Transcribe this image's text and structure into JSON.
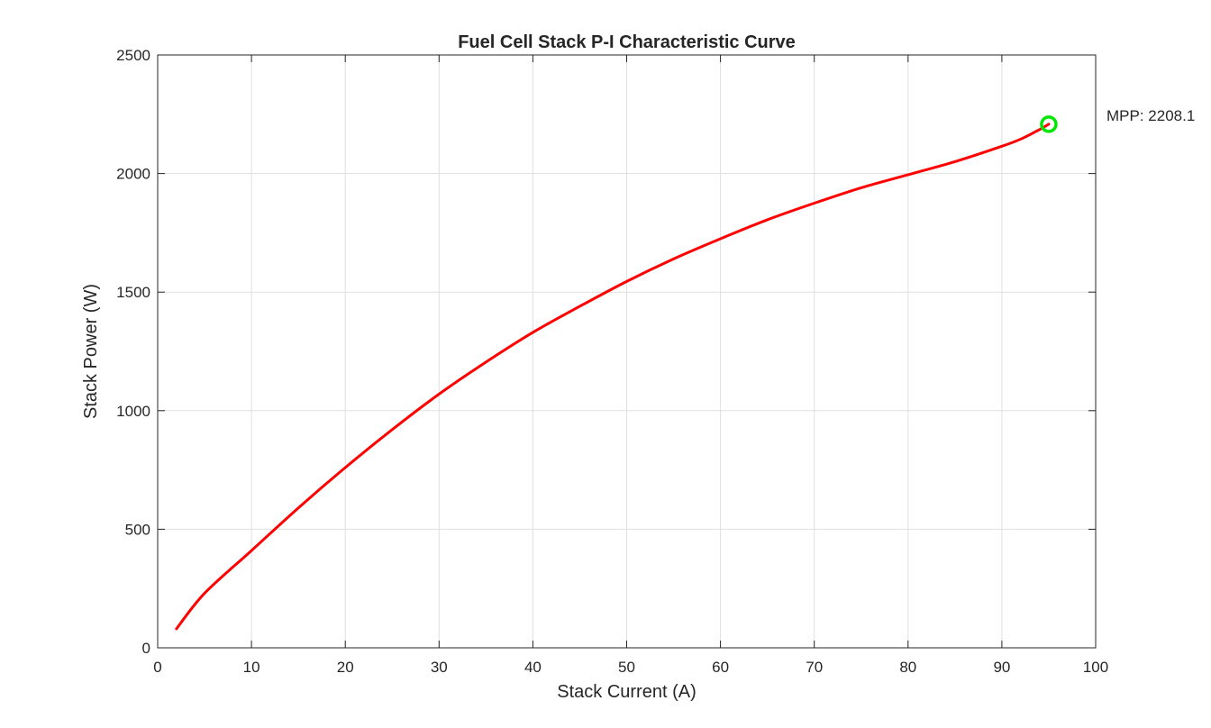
{
  "chart_data": {
    "type": "line",
    "title": "Fuel Cell Stack P-I Characteristic Curve",
    "xlabel": "Stack Current (A)",
    "ylabel": "Stack Power (W)",
    "xlim": [
      0,
      100
    ],
    "ylim": [
      0,
      2500
    ],
    "xticks": [
      0,
      10,
      20,
      30,
      40,
      50,
      60,
      70,
      80,
      90,
      100
    ],
    "yticks": [
      0,
      500,
      1000,
      1500,
      2000,
      2500
    ],
    "grid": true,
    "series": [
      {
        "color": "#ff0000",
        "x": [
          2,
          5,
          10,
          15,
          20,
          25,
          30,
          35,
          40,
          45,
          50,
          55,
          60,
          65,
          70,
          75,
          80,
          85,
          90,
          92,
          94,
          95
        ],
        "y": [
          80,
          230,
          410,
          590,
          760,
          920,
          1070,
          1205,
          1330,
          1440,
          1545,
          1640,
          1725,
          1805,
          1875,
          1940,
          1995,
          2050,
          2115,
          2145,
          2185,
          2208
        ]
      }
    ],
    "marker": {
      "x": 95,
      "y": 2208,
      "color": "#00e600",
      "shape": "circle"
    },
    "annotation": {
      "text": "MPP: 2208.1",
      "x": 101,
      "y": 2208
    }
  }
}
